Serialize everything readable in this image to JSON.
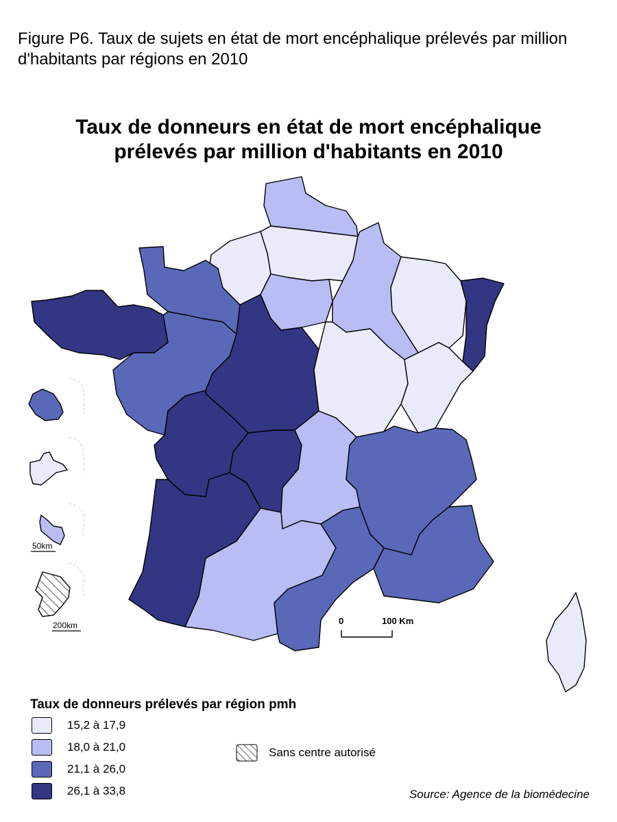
{
  "figure_caption": "Figure P6. Taux de sujets en état de mort encéphalique prélevés par million d'habitants par régions en 2010",
  "map_title_line1": "Taux de donneurs en état de mort encéphalique",
  "map_title_line2": "prélevés par million d'habitants en 2010",
  "colors": {
    "c1": "#e9ebfa",
    "c2": "#b8bdf4",
    "c3": "#5a68b8",
    "c4": "#323683",
    "outline": "#000000",
    "dashed": "#cccccc"
  },
  "legend": {
    "title": "Taux de donneurs prélevés par région pmh",
    "classes": [
      {
        "label": "15,2 à 17,9",
        "color": "#e9ebfa"
      },
      {
        "label": "18,0 à 21,0",
        "color": "#b8bdf4"
      },
      {
        "label": "21,1 à 26,0",
        "color": "#5a68b8"
      },
      {
        "label": "26,1 à 33,8",
        "color": "#323683"
      }
    ],
    "no_center_label": "Sans centre autorisé"
  },
  "scale_bar": {
    "start": "0",
    "end": "100 Km"
  },
  "inset_scales": {
    "guadeloupe": "50km",
    "guyane": "200km"
  },
  "source": "Source: Agence de la biomédecine"
}
